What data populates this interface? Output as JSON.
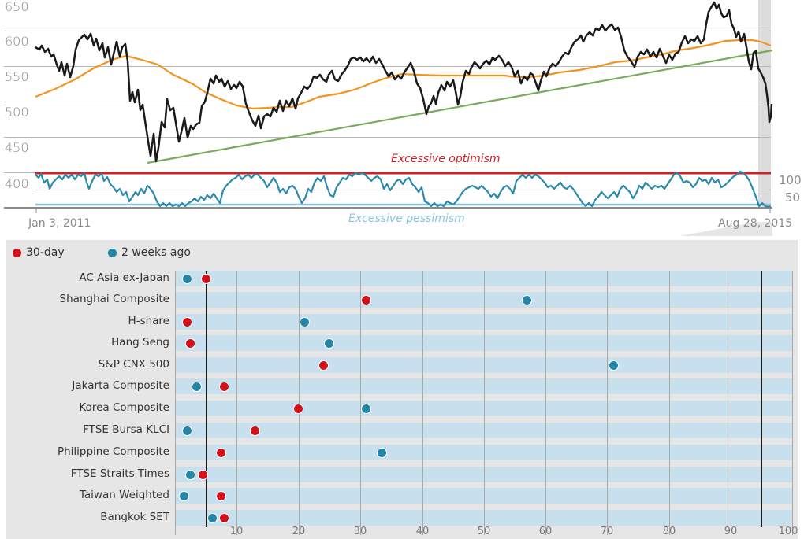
{
  "chart_data": [
    {
      "type": "line",
      "title": "",
      "xlabel": "",
      "ylabel": "",
      "x_range": [
        "Jan 3, 2011",
        "Aug 28, 2015"
      ],
      "ylim": [
        400,
        650
      ],
      "y_ticks": [
        650,
        600,
        550,
        500,
        450,
        400
      ],
      "series": [
        {
          "name": "Index",
          "color": "#1a1a1a",
          "approx_values": [
            {
              "date": "2011-01",
              "v": 590
            },
            {
              "date": "2011-05",
              "v": 605
            },
            {
              "date": "2011-08",
              "v": 590
            },
            {
              "date": "2011-09",
              "v": 505
            },
            {
              "date": "2011-10",
              "v": 440
            },
            {
              "date": "2012-02",
              "v": 540
            },
            {
              "date": "2012-05",
              "v": 530
            },
            {
              "date": "2012-06",
              "v": 480
            },
            {
              "date": "2012-09",
              "v": 490
            },
            {
              "date": "2013-01",
              "v": 555
            },
            {
              "date": "2013-05",
              "v": 560
            },
            {
              "date": "2013-06",
              "v": 490
            },
            {
              "date": "2013-10",
              "v": 545
            },
            {
              "date": "2014-03",
              "v": 535
            },
            {
              "date": "2014-09",
              "v": 600
            },
            {
              "date": "2014-12",
              "v": 550
            },
            {
              "date": "2015-04",
              "v": 645
            },
            {
              "date": "2015-06",
              "v": 590
            },
            {
              "date": "2015-07",
              "v": 555
            },
            {
              "date": "2015-08",
              "v": 490
            }
          ]
        },
        {
          "name": "Moving average",
          "color": "#f2941f",
          "approx_values": [
            {
              "date": "2011-01",
              "v": 510
            },
            {
              "date": "2011-07",
              "v": 570
            },
            {
              "date": "2012-01",
              "v": 545
            },
            {
              "date": "2012-06",
              "v": 500
            },
            {
              "date": "2013-01",
              "v": 505
            },
            {
              "date": "2013-06",
              "v": 545
            },
            {
              "date": "2014-03",
              "v": 545
            },
            {
              "date": "2014-09",
              "v": 560
            },
            {
              "date": "2015-04",
              "v": 585
            },
            {
              "date": "2015-08",
              "v": 580
            }
          ]
        },
        {
          "name": "Trend line",
          "color": "#7aab5c",
          "approx_values": [
            {
              "date": "2011-10",
              "v": 445
            },
            {
              "date": "2015-08",
              "v": 570
            }
          ]
        }
      ]
    },
    {
      "type": "line",
      "title": "Sentiment indicator",
      "y_ticks": [
        100,
        50
      ],
      "annotations": [
        "Excessive optimism",
        "Excessive pessimism"
      ],
      "series": [
        {
          "name": "Sentiment",
          "color": "#2a8aaa"
        }
      ]
    },
    {
      "type": "scatter",
      "title": "",
      "xlabel": "",
      "xlim": [
        0,
        100
      ],
      "x_ticks": [
        10,
        20,
        30,
        40,
        50,
        60,
        70,
        80,
        90,
        100
      ],
      "reference_lines": [
        5,
        95
      ],
      "categories": [
        "AC Asia ex-Japan",
        "Shanghai Composite",
        "H-share",
        "Hang Seng",
        "S&P CNX 500",
        "Jakarta Composite",
        "Korea Composite",
        "FTSE Bursa KLCI",
        "Philippine Composite",
        "FTSE Straits Times",
        "Taiwan Weighted",
        "Bangkok SET"
      ],
      "series": [
        {
          "name": "30-day",
          "color": "#d0121b",
          "values": [
            4,
            30,
            1,
            1.5,
            23,
            7,
            19,
            12,
            6.5,
            3.5,
            6.5,
            7
          ]
        },
        {
          "name": "2 weeks ago",
          "color": "#2486a6",
          "values": [
            1,
            56,
            20,
            24,
            70,
            2.5,
            30,
            1,
            32.5,
            1.5,
            0.5,
            5
          ]
        }
      ]
    }
  ],
  "top_chart": {
    "y_labels": [
      "650",
      "600",
      "550",
      "500",
      "450",
      "400"
    ],
    "right_labels": [
      "100",
      "50"
    ],
    "start_date": "Jan 3, 2011",
    "end_date": "Aug 28, 2015",
    "optimism_label": "Excessive optimism",
    "pessimism_label": "Excessive pessimism",
    "colors": {
      "optimism": "#cc2229",
      "pessimism": "#8cc4e0",
      "index": "#1a1a1a",
      "ma": "#f2941f",
      "trend": "#7aab5c",
      "sentiment": "#2a8aaa"
    }
  },
  "dot_chart": {
    "legend": [
      {
        "label": "30-day",
        "color": "#d0121b"
      },
      {
        "label": "2 weeks ago",
        "color": "#2486a6"
      }
    ],
    "rows": [
      {
        "label": "AC Asia ex-Japan"
      },
      {
        "label": "Shanghai Composite"
      },
      {
        "label": "H-share"
      },
      {
        "label": "Hang Seng"
      },
      {
        "label": "S&P CNX 500"
      },
      {
        "label": "Jakarta Composite"
      },
      {
        "label": "Korea Composite"
      },
      {
        "label": "FTSE Bursa KLCI"
      },
      {
        "label": "Philippine Composite"
      },
      {
        "label": "FTSE Straits Times"
      },
      {
        "label": "Taiwan Weighted"
      },
      {
        "label": "Bangkok SET"
      }
    ],
    "ticks": [
      "10",
      "20",
      "30",
      "40",
      "50",
      "60",
      "70",
      "80",
      "90",
      "100"
    ]
  }
}
